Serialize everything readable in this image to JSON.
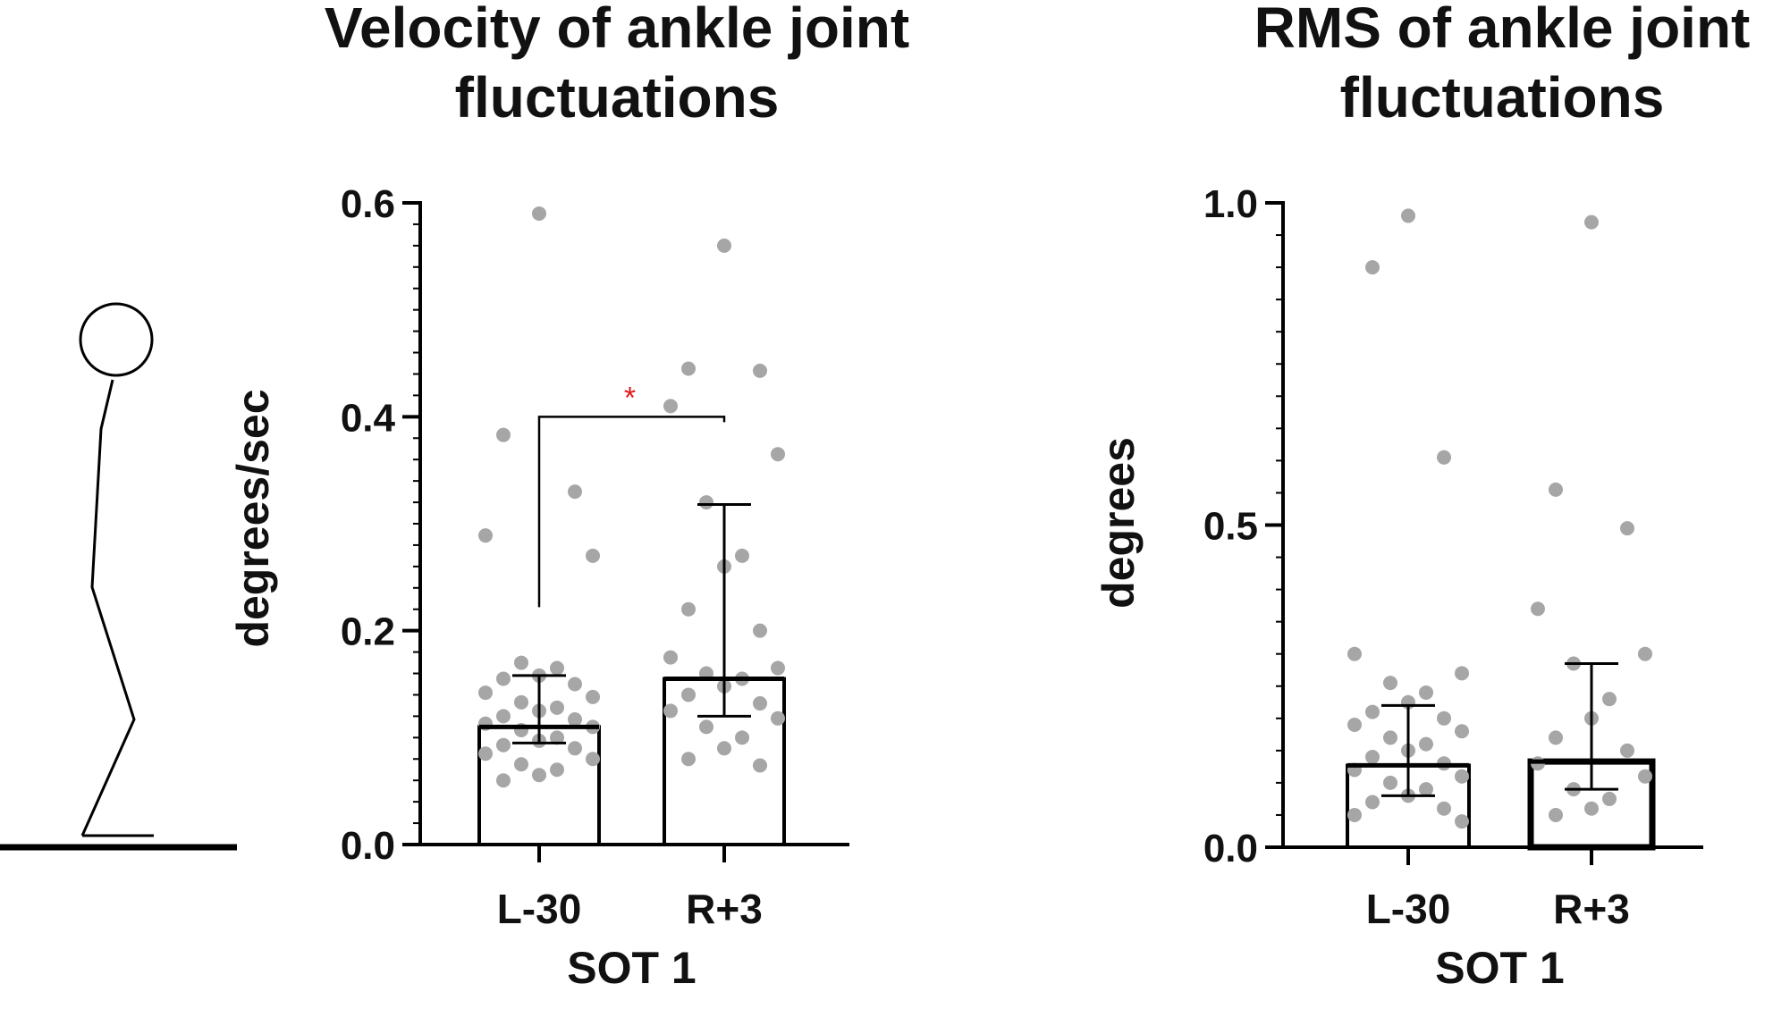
{
  "chart_data": [
    {
      "type": "bar",
      "title_lines": [
        "Velocity of ankle joint",
        "fluctuations"
      ],
      "xlabel": "SOT 1",
      "ylabel": "degrees/sec",
      "categories": [
        "L-30",
        "R+3"
      ],
      "ylim": [
        0,
        0.6
      ],
      "yticks": [
        "0.0",
        "0.2",
        "0.4",
        "0.6"
      ],
      "tick_values": [
        0,
        0.2,
        0.4,
        0.6
      ],
      "values": [
        0.11,
        0.155
      ],
      "error_low": [
        0.095,
        0.12
      ],
      "error_high": [
        0.158,
        0.318
      ],
      "significance": {
        "between": [
          0,
          1
        ],
        "y": 0.4,
        "label": "*",
        "color": "#e31a1c"
      },
      "points": [
        [
          0.59,
          0.383,
          0.33,
          0.289,
          0.27,
          0.17,
          0.165,
          0.158,
          0.155,
          0.15,
          0.142,
          0.138,
          0.133,
          0.128,
          0.125,
          0.12,
          0.117,
          0.113,
          0.11,
          0.107,
          0.1,
          0.097,
          0.093,
          0.09,
          0.085,
          0.08,
          0.075,
          0.07,
          0.065,
          0.06
        ],
        [
          0.56,
          0.445,
          0.443,
          0.41,
          0.365,
          0.32,
          0.27,
          0.26,
          0.22,
          0.2,
          0.175,
          0.165,
          0.16,
          0.155,
          0.148,
          0.14,
          0.132,
          0.125,
          0.118,
          0.11,
          0.1,
          0.09,
          0.08,
          0.074
        ]
      ],
      "point_color": "#a6a6a6"
    },
    {
      "type": "bar",
      "title_lines": [
        "RMS of ankle joint",
        "fluctuations"
      ],
      "xlabel": "SOT 1",
      "ylabel": "degrees",
      "categories": [
        "L-30",
        "R+3"
      ],
      "ylim": [
        0,
        1.0
      ],
      "yticks": [
        "0.0",
        "0.5",
        "1.0"
      ],
      "tick_values": [
        0,
        0.5,
        1.0
      ],
      "values": [
        0.127,
        0.133
      ],
      "error_low": [
        0.08,
        0.09
      ],
      "error_high": [
        0.22,
        0.285
      ],
      "points": [
        [
          0.98,
          0.9,
          0.605,
          0.3,
          0.27,
          0.255,
          0.24,
          0.225,
          0.21,
          0.2,
          0.19,
          0.18,
          0.17,
          0.16,
          0.15,
          0.14,
          0.13,
          0.12,
          0.11,
          0.1,
          0.09,
          0.08,
          0.07,
          0.06,
          0.05,
          0.04
        ],
        [
          0.97,
          0.555,
          0.495,
          0.37,
          0.3,
          0.285,
          0.23,
          0.2,
          0.17,
          0.15,
          0.13,
          0.11,
          0.09,
          0.075,
          0.06,
          0.05
        ]
      ],
      "point_color": "#a6a6a6"
    }
  ]
}
